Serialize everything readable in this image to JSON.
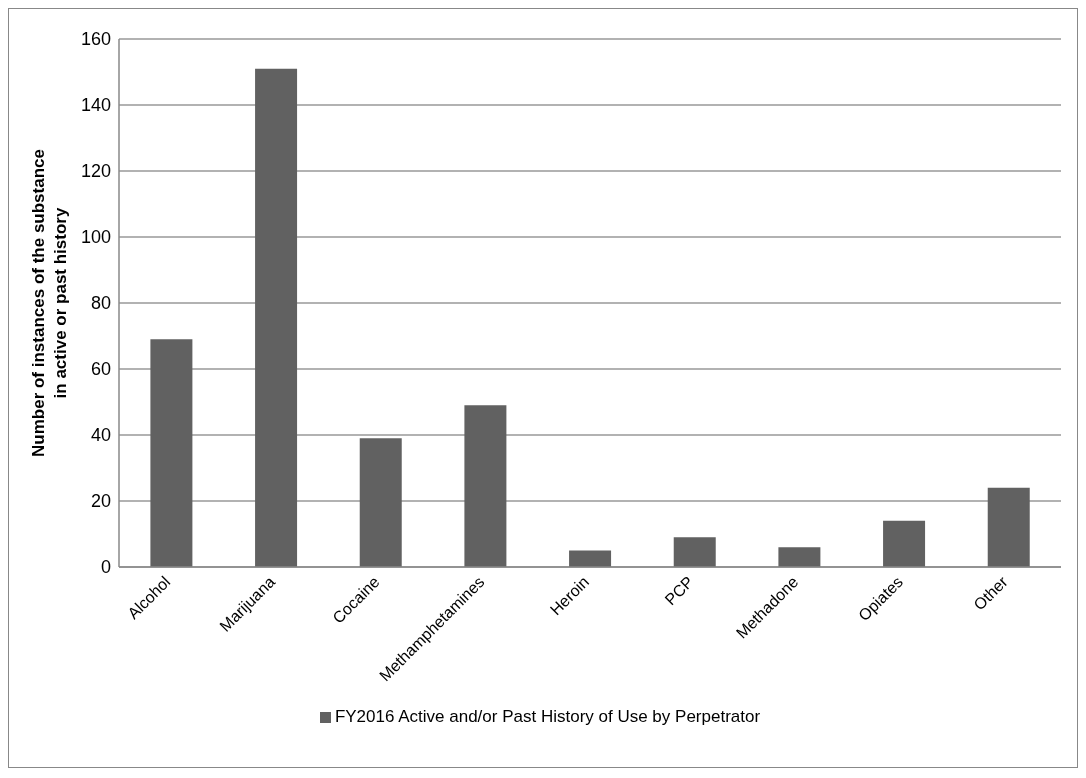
{
  "chart_data": {
    "type": "bar",
    "ylabel": "Number of instances of the substance in active or past history",
    "categories": [
      "Alcohol",
      "Marijuana",
      "Cocaine",
      "Methamphetamines",
      "Heroin",
      "PCP",
      "Methadone",
      "Opiates",
      "Other"
    ],
    "series": [
      {
        "name": "FY2016 Active and/or Past History of Use by Perpetrator",
        "color": "#616161",
        "values": [
          69,
          151,
          39,
          49,
          5,
          9,
          6,
          14,
          24
        ]
      }
    ],
    "ylim": [
      0,
      160
    ],
    "yticks": [
      0,
      20,
      40,
      60,
      80,
      100,
      120,
      140,
      160
    ],
    "grid": "y",
    "legend": "bottom"
  }
}
